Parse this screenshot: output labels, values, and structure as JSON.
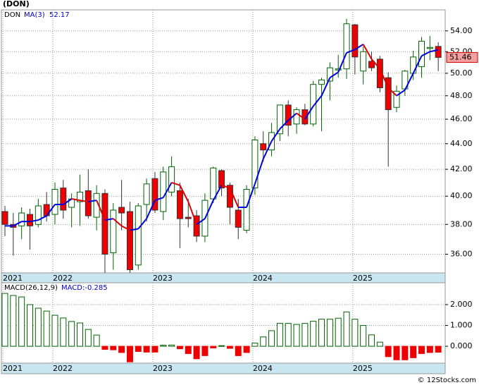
{
  "chart_data": [
    {
      "type": "candlestick",
      "title": "(DON)",
      "legend": {
        "symbol": "DON",
        "ma_label": "MA(3)",
        "ma_value": 52.17
      },
      "categories": [
        "2021",
        null,
        null,
        null,
        null,
        null,
        "2022",
        null,
        null,
        null,
        null,
        null,
        null,
        null,
        null,
        null,
        null,
        null,
        "2023",
        null,
        null,
        null,
        null,
        null,
        null,
        null,
        null,
        null,
        null,
        null,
        "2024",
        null,
        null,
        null,
        null,
        null,
        null,
        null,
        null,
        null,
        null,
        null,
        "2025",
        null,
        null,
        null,
        null,
        null,
        null,
        null,
        null,
        null,
        null
      ],
      "open": [
        38.9,
        38.0,
        37.9,
        38.7,
        38.0,
        39.4,
        38.7,
        40.6,
        39.2,
        39.6,
        40.4,
        38.5,
        40.2,
        36.1,
        39.2,
        38.9,
        35.3,
        39.4,
        41.3,
        38.9,
        40.3,
        40.4,
        38.5,
        38.6,
        37.2,
        39.8,
        41.9,
        40.8,
        39.0,
        37.6,
        40.6,
        44.0,
        43.5,
        44.8,
        47.2,
        45.6,
        46.8,
        45.6,
        49.0,
        49.3,
        50.3,
        50.4,
        54.6,
        50.2,
        51.1,
        51.3,
        49.6,
        47.0,
        48.6,
        50.0,
        50.6,
        52.3,
        52.5
      ],
      "high": [
        39.3,
        38.8,
        39.2,
        39.1,
        39.8,
        40.3,
        41.0,
        41.2,
        40.2,
        41.6,
        42.0,
        40.8,
        40.5,
        39.5,
        41.2,
        39.6,
        39.5,
        41.3,
        41.8,
        42.2,
        43.0,
        41.0,
        39.8,
        39.0,
        40.2,
        42.2,
        42.0,
        41.0,
        39.8,
        40.8,
        44.6,
        45.0,
        45.7,
        47.2,
        47.6,
        47.0,
        47.3,
        49.3,
        49.6,
        51.0,
        51.7,
        55.2,
        54.7,
        52.5,
        52.0,
        51.6,
        50.1,
        48.9,
        50.3,
        52.1,
        53.4,
        53.5,
        52.9
      ],
      "low": [
        37.2,
        35.9,
        37.0,
        36.3,
        37.8,
        38.2,
        38.0,
        38.4,
        37.8,
        37.9,
        38.4,
        37.6,
        34.8,
        35.0,
        37.6,
        34.8,
        35.0,
        38.2,
        38.8,
        38.3,
        40.0,
        36.4,
        37.8,
        36.8,
        36.8,
        39.5,
        40.0,
        38.0,
        37.0,
        37.4,
        40.1,
        42.6,
        43.0,
        44.2,
        44.6,
        44.8,
        45.5,
        45.4,
        45.0,
        47.6,
        49.6,
        49.5,
        49.9,
        49.0,
        50.2,
        48.3,
        42.2,
        46.6,
        48.0,
        49.4,
        49.6,
        51.2,
        50.2
      ],
      "close": [
        38.0,
        37.8,
        38.8,
        37.9,
        39.3,
        38.6,
        40.5,
        39.0,
        39.8,
        40.3,
        38.6,
        40.2,
        36.0,
        39.0,
        38.8,
        35.0,
        39.3,
        40.9,
        39.0,
        41.8,
        42.2,
        38.4,
        38.4,
        37.2,
        39.7,
        42.1,
        40.6,
        39.2,
        37.8,
        40.5,
        44.3,
        43.5,
        44.9,
        47.2,
        45.5,
        46.8,
        45.6,
        49.0,
        49.4,
        50.5,
        50.4,
        54.7,
        51.5,
        52.0,
        50.5,
        48.7,
        46.8,
        48.4,
        50.2,
        51.5,
        53.0,
        52.4,
        51.46
      ],
      "ma": {
        "values": [
          37.9,
          37.9,
          38.2,
          38.2,
          38.3,
          38.6,
          39.4,
          39.4,
          39.8,
          39.7,
          39.6,
          39.7,
          38.3,
          38.4,
          37.9,
          37.6,
          37.7,
          38.4,
          39.7,
          39.9,
          41.0,
          40.8,
          39.6,
          38.0,
          38.4,
          39.7,
          40.8,
          40.6,
          39.2,
          39.2,
          40.9,
          42.8,
          44.2,
          45.2,
          45.9,
          46.5,
          46.0,
          47.1,
          48.0,
          49.6,
          50.1,
          51.9,
          52.2,
          52.7,
          51.3,
          50.4,
          48.7,
          48.0,
          48.5,
          50.0,
          51.6,
          52.0,
          52.17
        ],
        "up_color": "#0000dd",
        "down_color": "#dd0000"
      },
      "last_price": 51.46,
      "up_color": "#006400",
      "down_color": "#ee0000",
      "log_scale": true,
      "grid": true,
      "ylim": [
        34.8,
        56.1
      ],
      "yticks": [
        {
          "value": 36,
          "label": "36.00"
        },
        {
          "value": 38,
          "label": "38.00"
        },
        {
          "value": 40,
          "label": "40.00"
        },
        {
          "value": 42,
          "label": "42.00"
        },
        {
          "value": 44,
          "label": "44.00"
        },
        {
          "value": 46,
          "label": "46.00"
        },
        {
          "value": 48,
          "label": "48.00"
        },
        {
          "value": 50,
          "label": "50.00"
        },
        {
          "value": 52,
          "label": "52.00"
        },
        {
          "value": 54,
          "label": "54.00"
        }
      ]
    },
    {
      "type": "bar",
      "title": "MACD(26,12,9)",
      "value_label": "MACD:-0.285",
      "values": [
        2.54,
        2.44,
        2.37,
        2.0,
        1.83,
        1.69,
        1.49,
        1.36,
        1.19,
        1.12,
        0.81,
        0.54,
        -0.15,
        -0.17,
        -0.3,
        -0.75,
        -0.25,
        -0.28,
        -0.28,
        0.05,
        0.06,
        -0.12,
        -0.35,
        -0.6,
        -0.45,
        -0.08,
        0.03,
        -0.1,
        -0.45,
        -0.3,
        0.15,
        0.45,
        0.75,
        1.1,
        1.1,
        1.05,
        1.1,
        1.2,
        1.3,
        1.3,
        1.35,
        1.65,
        1.3,
        1.0,
        0.55,
        0.2,
        -0.5,
        -0.65,
        -0.65,
        -0.55,
        -0.35,
        -0.3,
        -0.285
      ],
      "up_color": "#006400",
      "down_color": "#ee0000",
      "grid": true,
      "ylim": [
        -0.81,
        3.05
      ],
      "yticks": [
        {
          "value": 0,
          "label": "0.000"
        },
        {
          "value": 1,
          "label": "1.000"
        },
        {
          "value": 2,
          "label": "2.000"
        }
      ]
    }
  ],
  "footer": "© 12Stocks.com"
}
